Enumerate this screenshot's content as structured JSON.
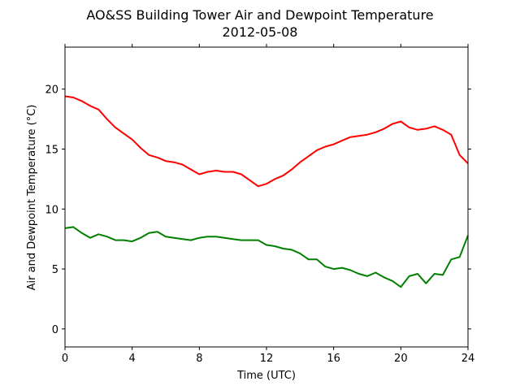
{
  "chart_data": {
    "type": "line",
    "title": "AO&SS Building Tower Air and Dewpoint Temperature",
    "subtitle": "2012-05-08",
    "xlabel": "Time (UTC)",
    "ylabel": "Air and Dewpoint Temperature (°C)",
    "xlim": [
      0,
      24
    ],
    "ylim": [
      -1.5,
      23.5
    ],
    "xticks": [
      0,
      4,
      8,
      12,
      16,
      20,
      24
    ],
    "xtick_labels": [
      "0",
      "4",
      "8",
      "12",
      "16",
      "20",
      "24"
    ],
    "yticks": [
      0,
      5,
      10,
      15,
      20
    ],
    "ytick_labels": [
      "0",
      "5",
      "10",
      "15",
      "20"
    ],
    "grid": false,
    "series": [
      {
        "color": "#ff0000",
        "x": [
          0,
          0.5,
          1,
          1.5,
          2,
          2.5,
          3,
          3.5,
          4,
          4.5,
          5,
          5.5,
          6,
          6.5,
          7,
          7.5,
          8,
          8.5,
          9,
          9.5,
          10,
          10.5,
          11,
          11.5,
          12,
          12.5,
          13,
          13.5,
          14,
          14.5,
          15,
          15.5,
          16,
          16.5,
          17,
          17.5,
          18,
          18.5,
          19,
          19.5,
          20,
          20.5,
          21,
          21.5,
          22,
          22.5,
          23,
          23.5,
          24
        ],
        "y": [
          19.4,
          19.3,
          19.0,
          18.6,
          18.3,
          17.5,
          16.8,
          16.3,
          15.8,
          15.1,
          14.5,
          14.3,
          14.0,
          13.9,
          13.7,
          13.3,
          12.9,
          13.1,
          13.2,
          13.1,
          13.1,
          12.9,
          12.4,
          11.9,
          12.1,
          12.5,
          12.8,
          13.3,
          13.9,
          14.4,
          14.9,
          15.2,
          15.4,
          15.7,
          16.0,
          16.1,
          16.2,
          16.4,
          16.7,
          17.1,
          17.3,
          16.8,
          16.6,
          16.7,
          16.9,
          16.6,
          16.2,
          14.5,
          13.8
        ]
      },
      {
        "color": "#008000",
        "x": [
          0,
          0.5,
          1,
          1.5,
          2,
          2.5,
          3,
          3.5,
          4,
          4.5,
          5,
          5.5,
          6,
          6.5,
          7,
          7.5,
          8,
          8.5,
          9,
          9.5,
          10,
          10.5,
          11,
          11.5,
          12,
          12.5,
          13,
          13.5,
          14,
          14.5,
          15,
          15.5,
          16,
          16.5,
          17,
          17.5,
          18,
          18.5,
          19,
          19.5,
          20,
          20.5,
          21,
          21.5,
          22,
          22.5,
          23,
          23.5,
          24
        ],
        "y": [
          8.4,
          8.5,
          8.0,
          7.6,
          7.9,
          7.7,
          7.4,
          7.4,
          7.3,
          7.6,
          8.0,
          8.1,
          7.7,
          7.6,
          7.5,
          7.4,
          7.6,
          7.7,
          7.7,
          7.6,
          7.5,
          7.4,
          7.4,
          7.4,
          7.0,
          6.9,
          6.7,
          6.6,
          6.3,
          5.8,
          5.8,
          5.2,
          5.0,
          5.1,
          4.9,
          4.6,
          4.4,
          4.7,
          4.3,
          4.0,
          3.5,
          4.4,
          4.6,
          3.8,
          4.6,
          4.5,
          5.8,
          6.0,
          7.8
        ]
      }
    ]
  }
}
